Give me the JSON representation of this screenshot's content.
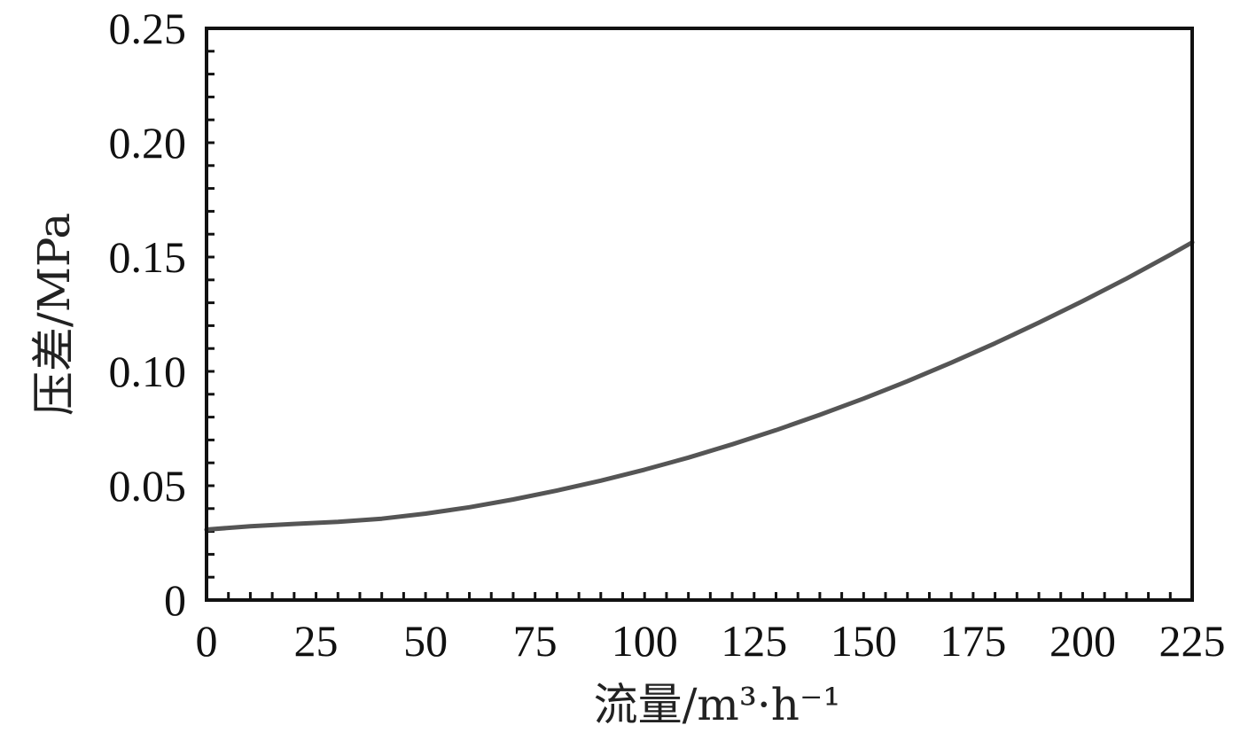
{
  "chart_data": {
    "type": "line",
    "title": "",
    "xlabel": "流量/m³·h⁻¹",
    "ylabel": "压差/MPa",
    "xlim": [
      0,
      225
    ],
    "ylim": [
      0,
      0.25
    ],
    "x_ticks": [
      "0",
      "25",
      "50",
      "75",
      "100",
      "125",
      "150",
      "175",
      "200",
      "225"
    ],
    "y_ticks": [
      "0",
      "0.05",
      "0.10",
      "0.15",
      "0.20",
      "0.25"
    ],
    "grid": false,
    "legend": "none",
    "series": [
      {
        "color": "#555555",
        "x": [
          0,
          10,
          20,
          30,
          40,
          50,
          60,
          70,
          80,
          90,
          100,
          110,
          120,
          130,
          140,
          150,
          160,
          170,
          180,
          190,
          200,
          210,
          220,
          225
        ],
        "y": [
          0.0308,
          0.0323,
          0.0333,
          0.0342,
          0.0356,
          0.0378,
          0.0406,
          0.044,
          0.0479,
          0.0522,
          0.057,
          0.0623,
          0.0681,
          0.0743,
          0.081,
          0.0881,
          0.0957,
          0.1038,
          0.1123,
          0.1213,
          0.1307,
          0.1406,
          0.151,
          0.1564
        ]
      }
    ]
  }
}
